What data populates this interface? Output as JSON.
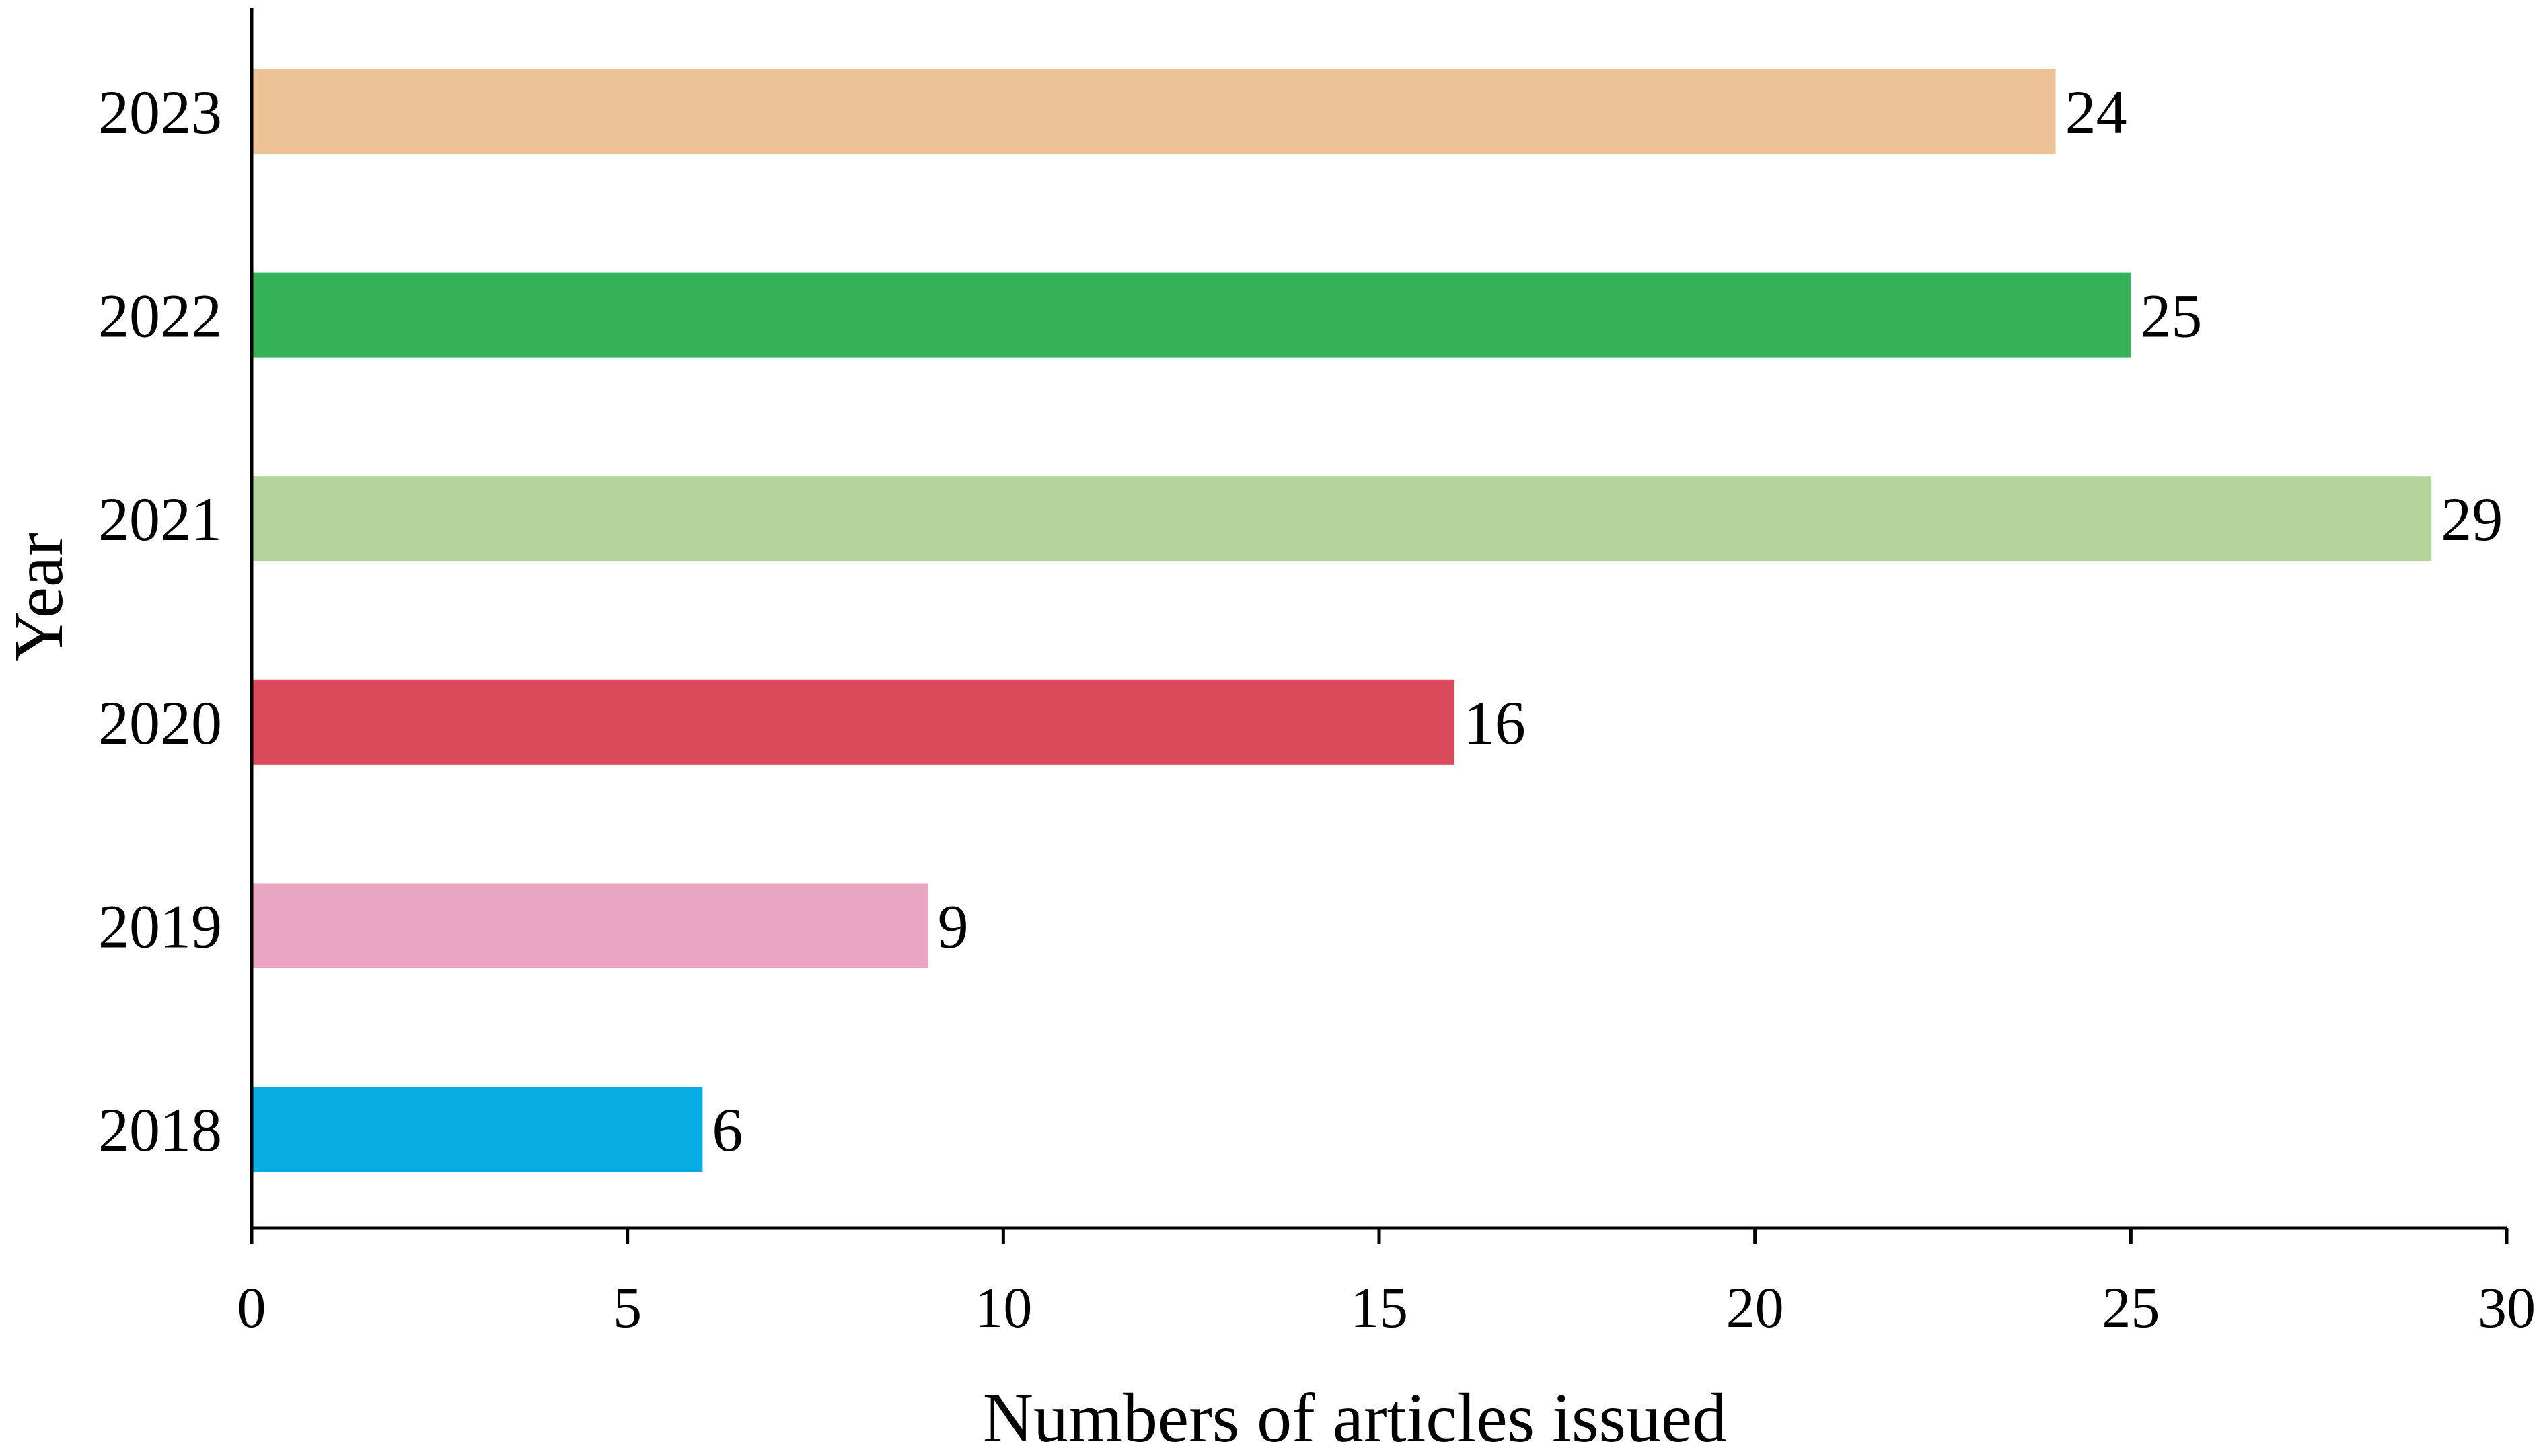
{
  "chart_data": {
    "type": "bar",
    "orientation": "horizontal",
    "title": "",
    "xlabel": "Numbers of articles issued",
    "ylabel": "Year",
    "categories": [
      "2023",
      "2022",
      "2021",
      "2020",
      "2019",
      "2018"
    ],
    "values": [
      24,
      25,
      29,
      16,
      9,
      6
    ],
    "value_labels": [
      "24",
      "25",
      "29",
      "16",
      "9",
      "6"
    ],
    "colors": [
      "#EDC196",
      "#35B158",
      "#B3D59C",
      "#DA4A5A",
      "#EAA5C2",
      "#08AEE3"
    ],
    "xlim": [
      0,
      30
    ],
    "xticks": [
      0,
      5,
      10,
      15,
      20,
      25,
      30
    ],
    "xtick_labels": [
      "0",
      "5",
      "10",
      "15",
      "20",
      "25",
      "30"
    ],
    "grid": false,
    "legend": "none"
  }
}
